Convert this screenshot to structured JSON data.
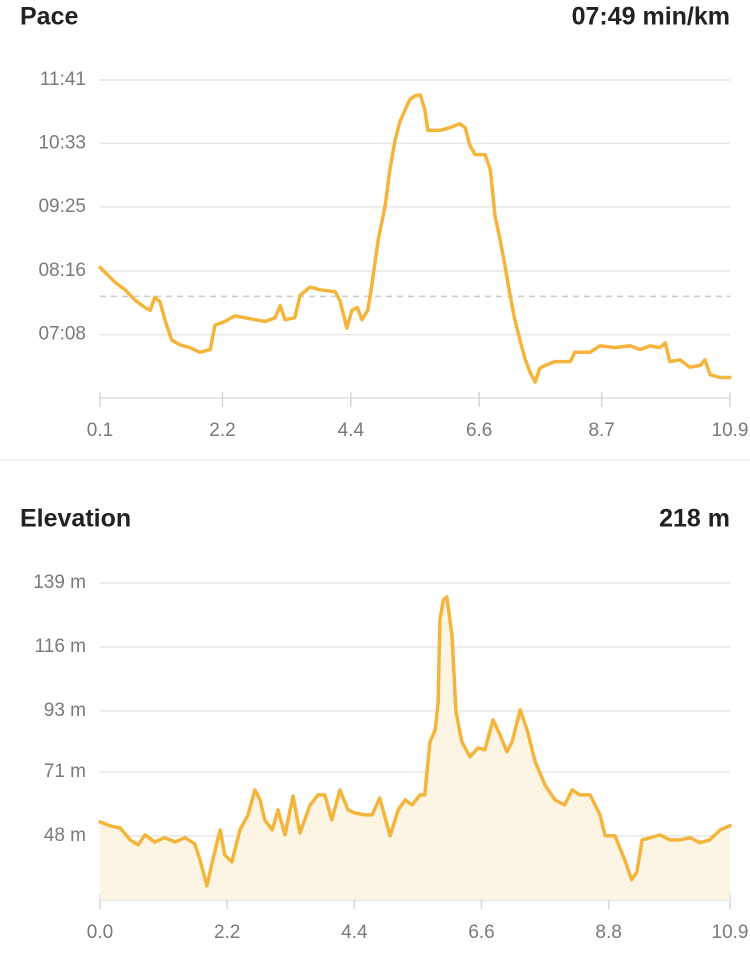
{
  "chart_data": [
    {
      "type": "line",
      "title": "Pace",
      "summary": "07:49 min/km",
      "color": "#f5b43c",
      "x": [
        0.1,
        0.36,
        0.53,
        0.7,
        0.87,
        0.96,
        1.04,
        1.13,
        1.21,
        1.33,
        1.47,
        1.64,
        1.81,
        1.99,
        2.07,
        2.24,
        2.41,
        2.59,
        2.76,
        2.93,
        3.1,
        3.19,
        3.27,
        3.44,
        3.53,
        3.7,
        3.87,
        4.13,
        4.21,
        4.33,
        4.42,
        4.51,
        4.59,
        4.69,
        4.76,
        4.87,
        4.99,
        5.07,
        5.16,
        5.24,
        5.33,
        5.41,
        5.5,
        5.59,
        5.67,
        5.72,
        5.93,
        6.1,
        6.27,
        6.36,
        6.44,
        6.53,
        6.7,
        6.79,
        6.87,
        6.96,
        7.04,
        7.13,
        7.21,
        7.3,
        7.39,
        7.47,
        7.56,
        7.64,
        7.73,
        7.9,
        8.16,
        8.24,
        8.5,
        8.67,
        8.93,
        9.19,
        9.36,
        9.53,
        9.7,
        9.79,
        9.87,
        10.04,
        10.21,
        10.39,
        10.47,
        10.56,
        10.73,
        10.9
      ],
      "values": [
        500,
        484,
        476,
        465,
        457,
        454,
        468,
        463,
        444,
        422,
        417,
        414,
        409,
        412,
        438,
        442,
        448,
        446,
        444,
        442,
        446,
        459,
        444,
        446,
        470,
        479,
        476,
        474,
        465,
        435,
        454,
        457,
        444,
        454,
        481,
        530,
        567,
        605,
        637,
        656,
        669,
        680,
        684,
        685,
        669,
        647,
        647,
        650,
        654,
        650,
        631,
        621,
        621,
        605,
        556,
        529,
        503,
        470,
        444,
        422,
        401,
        388,
        377,
        392,
        395,
        399,
        399,
        409,
        409,
        416,
        414,
        416,
        412,
        416,
        414,
        419,
        399,
        401,
        393,
        395,
        401,
        385,
        382,
        382
      ],
      "average": 469,
      "xlim": [
        0.1,
        10.9
      ],
      "xticks": [
        0.1,
        2.2,
        4.4,
        6.6,
        8.7,
        10.9
      ],
      "ylim": [
        360,
        701
      ],
      "yticks": [
        {
          "value": 701,
          "label": "11:41"
        },
        {
          "value": 633,
          "label": "10:33"
        },
        {
          "value": 565,
          "label": "09:25"
        },
        {
          "value": 496,
          "label": "08:16"
        },
        {
          "value": 428,
          "label": "07:08"
        }
      ],
      "grid": true
    },
    {
      "type": "area",
      "title": "Elevation",
      "summary": "218 m",
      "color": "#f5b43c",
      "fill_color": "#fdf5e4",
      "x": [
        0.0,
        0.17,
        0.35,
        0.52,
        0.66,
        0.78,
        0.95,
        1.12,
        1.3,
        1.47,
        1.64,
        1.73,
        1.85,
        1.95,
        2.08,
        2.16,
        2.28,
        2.42,
        2.56,
        2.68,
        2.77,
        2.85,
        2.98,
        3.08,
        3.2,
        3.34,
        3.46,
        3.63,
        3.77,
        3.89,
        4.01,
        4.15,
        4.29,
        4.41,
        4.58,
        4.71,
        4.84,
        5.02,
        5.16,
        5.28,
        5.4,
        5.54,
        5.62,
        5.71,
        5.8,
        5.85,
        5.88,
        5.94,
        6.0,
        6.09,
        6.16,
        6.26,
        6.4,
        6.54,
        6.66,
        6.8,
        6.92,
        7.04,
        7.13,
        7.27,
        7.39,
        7.53,
        7.7,
        7.87,
        8.04,
        8.17,
        8.3,
        8.48,
        8.65,
        8.74,
        8.91,
        9.08,
        9.2,
        9.29,
        9.38,
        9.52,
        9.69,
        9.86,
        10.03,
        10.21,
        10.38,
        10.55,
        10.73,
        10.9
      ],
      "values": [
        53.1,
        51.7,
        50.9,
        46.6,
        44.8,
        48.4,
        45.9,
        47.4,
        45.9,
        47.4,
        45.2,
        39.4,
        30.1,
        39.4,
        50.2,
        41.2,
        38.7,
        50.2,
        55.6,
        64.6,
        61,
        53.8,
        50.2,
        57.4,
        48.4,
        62.4,
        49.1,
        58.9,
        62.8,
        62.8,
        53.8,
        64.6,
        57.4,
        56.3,
        55.6,
        55.6,
        61.7,
        48.1,
        57.4,
        61,
        59.2,
        62.8,
        62.8,
        81.9,
        86.2,
        95.9,
        125.7,
        132.9,
        134,
        120.3,
        92.6,
        81.9,
        76.5,
        79.7,
        79,
        89.8,
        84.4,
        78.3,
        81.9,
        93.4,
        86.2,
        74.7,
        66.4,
        61,
        59.2,
        64.6,
        62.8,
        62.8,
        55.6,
        48.1,
        48.1,
        39.4,
        32.3,
        35.1,
        46.6,
        47.4,
        48.4,
        46.6,
        46.6,
        47.4,
        45.6,
        46.6,
        50.2,
        51.7
      ],
      "xlim": [
        0,
        10.9
      ],
      "xticks": [
        {
          "value": 0,
          "label": "0.0"
        },
        2.2,
        4.4,
        6.6,
        8.8,
        10.9
      ],
      "ylim": [
        25,
        139
      ],
      "yticks": [
        {
          "value": 139,
          "label": "139 m"
        },
        {
          "value": 116,
          "label": "116 m"
        },
        {
          "value": 93,
          "label": "93 m"
        },
        {
          "value": 71,
          "label": "71 m"
        },
        {
          "value": 48,
          "label": "48 m"
        }
      ],
      "grid": true
    }
  ]
}
